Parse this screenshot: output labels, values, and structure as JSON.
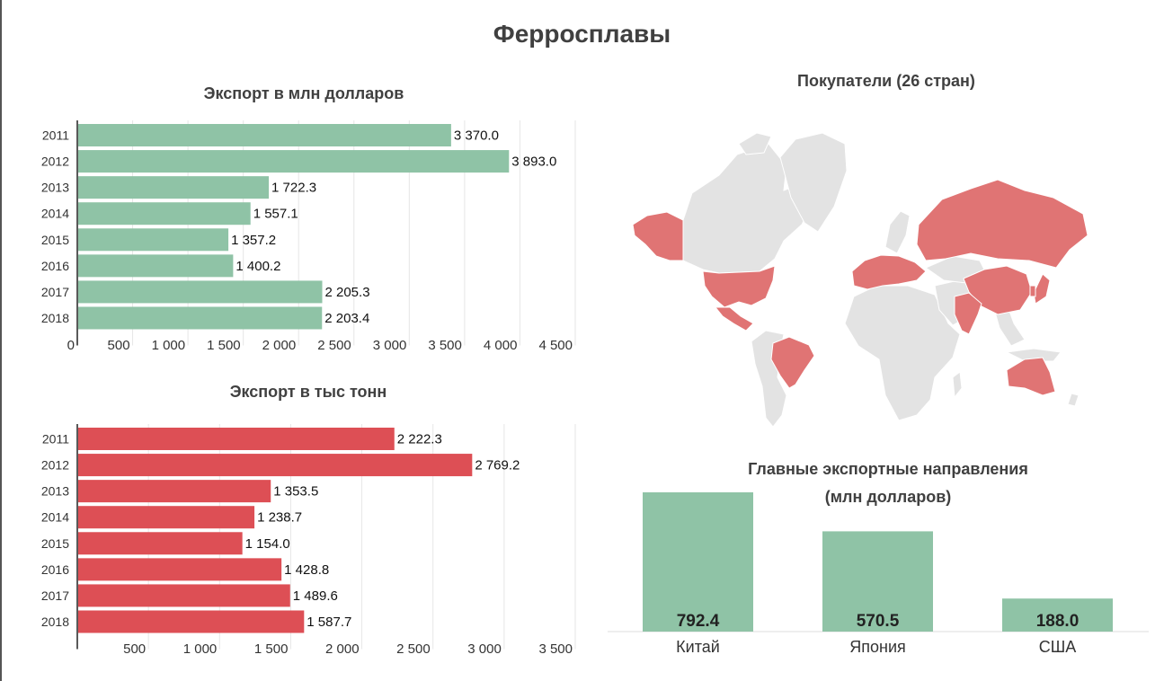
{
  "title": "Ферросплавы",
  "colors": {
    "green": "#8fc3a6",
    "red": "#dd4f55",
    "map_highlight": "#e07474",
    "map_base": "#e3e3e3"
  },
  "chart_data": [
    {
      "type": "bar",
      "orientation": "horizontal",
      "title": "Экспорт в млн долларов",
      "categories": [
        "2011",
        "2012",
        "2013",
        "2014",
        "2015",
        "2016",
        "2017",
        "2018"
      ],
      "values": [
        3370.0,
        3893.0,
        1722.3,
        1557.1,
        1357.2,
        1400.2,
        2205.3,
        2203.4
      ],
      "value_labels": [
        "3 370.0",
        "3 893.0",
        "1 722.3",
        "1 557.1",
        "1 357.2",
        "1 400.2",
        "2 205.3",
        "2 203.4"
      ],
      "xlim": [
        0,
        4500
      ],
      "ticks": [
        0,
        500,
        1000,
        1500,
        2000,
        2500,
        3000,
        3500,
        4000,
        4500
      ],
      "tick_labels": [
        "0",
        "500",
        "1 000",
        "1 500",
        "2 000",
        "2 500",
        "3 000",
        "3 500",
        "4 000",
        "4 500"
      ],
      "grid": true
    },
    {
      "type": "bar",
      "orientation": "horizontal",
      "title": "Экспорт в тыс тонн",
      "categories": [
        "2011",
        "2012",
        "2013",
        "2014",
        "2015",
        "2016",
        "2017",
        "2018"
      ],
      "values": [
        2222.3,
        2769.2,
        1353.5,
        1238.7,
        1154.0,
        1428.8,
        1489.6,
        1587.7
      ],
      "value_labels": [
        "2 222.3",
        "2 769.2",
        "1 353.5",
        "1 238.7",
        "1 154.0",
        "1 428.8",
        "1 489.6",
        "1 587.7"
      ],
      "xlim": [
        0,
        3500
      ],
      "ticks": [
        500,
        1000,
        1500,
        2000,
        2500,
        3000,
        3500
      ],
      "tick_labels": [
        "500",
        "1 000",
        "1 500",
        "2 000",
        "2 500",
        "3 000",
        "3 500"
      ],
      "grid": true
    },
    {
      "type": "bar",
      "orientation": "vertical",
      "title_lines": [
        "Главные экспортные направления",
        "(млн долларов)"
      ],
      "categories": [
        "Китай",
        "Япония",
        "США"
      ],
      "values": [
        792.4,
        570.5,
        188.0
      ],
      "value_labels": [
        "792.4",
        "570.5",
        "188.0"
      ],
      "ylim": [
        0,
        792.4
      ]
    }
  ],
  "map": {
    "title": "Покупатели (26 стран)",
    "type": "choropleth",
    "highlighted": [
      "Россия",
      "США",
      "Канада (Аляска)",
      "Мексика",
      "Бразилия",
      "Китай",
      "Индия",
      "Япония",
      "Южная Корея",
      "Австралия",
      "Европа"
    ]
  }
}
